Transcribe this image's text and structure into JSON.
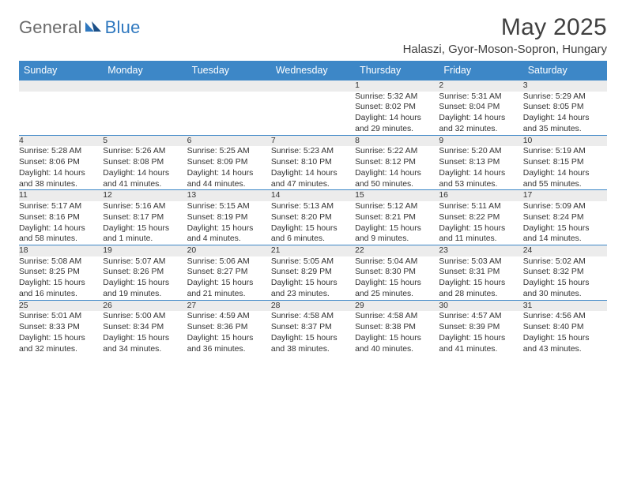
{
  "logo": {
    "general": "General",
    "blue": "Blue"
  },
  "title": "May 2025",
  "subtitle": "Halaszi, Gyor-Moson-Sopron, Hungary",
  "colors": {
    "header_bg": "#3d87c7",
    "header_text": "#ffffff",
    "daynum_bg": "#ececec",
    "border": "#3d87c7",
    "text": "#333333",
    "title": "#404040",
    "logo_gray": "#6a6a6a",
    "logo_blue": "#2f78bf"
  },
  "weekdays": [
    "Sunday",
    "Monday",
    "Tuesday",
    "Wednesday",
    "Thursday",
    "Friday",
    "Saturday"
  ],
  "weeks": [
    [
      null,
      null,
      null,
      null,
      {
        "d": "1",
        "sr": "Sunrise: 5:32 AM",
        "ss": "Sunset: 8:02 PM",
        "dl1": "Daylight: 14 hours",
        "dl2": "and 29 minutes."
      },
      {
        "d": "2",
        "sr": "Sunrise: 5:31 AM",
        "ss": "Sunset: 8:04 PM",
        "dl1": "Daylight: 14 hours",
        "dl2": "and 32 minutes."
      },
      {
        "d": "3",
        "sr": "Sunrise: 5:29 AM",
        "ss": "Sunset: 8:05 PM",
        "dl1": "Daylight: 14 hours",
        "dl2": "and 35 minutes."
      }
    ],
    [
      {
        "d": "4",
        "sr": "Sunrise: 5:28 AM",
        "ss": "Sunset: 8:06 PM",
        "dl1": "Daylight: 14 hours",
        "dl2": "and 38 minutes."
      },
      {
        "d": "5",
        "sr": "Sunrise: 5:26 AM",
        "ss": "Sunset: 8:08 PM",
        "dl1": "Daylight: 14 hours",
        "dl2": "and 41 minutes."
      },
      {
        "d": "6",
        "sr": "Sunrise: 5:25 AM",
        "ss": "Sunset: 8:09 PM",
        "dl1": "Daylight: 14 hours",
        "dl2": "and 44 minutes."
      },
      {
        "d": "7",
        "sr": "Sunrise: 5:23 AM",
        "ss": "Sunset: 8:10 PM",
        "dl1": "Daylight: 14 hours",
        "dl2": "and 47 minutes."
      },
      {
        "d": "8",
        "sr": "Sunrise: 5:22 AM",
        "ss": "Sunset: 8:12 PM",
        "dl1": "Daylight: 14 hours",
        "dl2": "and 50 minutes."
      },
      {
        "d": "9",
        "sr": "Sunrise: 5:20 AM",
        "ss": "Sunset: 8:13 PM",
        "dl1": "Daylight: 14 hours",
        "dl2": "and 53 minutes."
      },
      {
        "d": "10",
        "sr": "Sunrise: 5:19 AM",
        "ss": "Sunset: 8:15 PM",
        "dl1": "Daylight: 14 hours",
        "dl2": "and 55 minutes."
      }
    ],
    [
      {
        "d": "11",
        "sr": "Sunrise: 5:17 AM",
        "ss": "Sunset: 8:16 PM",
        "dl1": "Daylight: 14 hours",
        "dl2": "and 58 minutes."
      },
      {
        "d": "12",
        "sr": "Sunrise: 5:16 AM",
        "ss": "Sunset: 8:17 PM",
        "dl1": "Daylight: 15 hours",
        "dl2": "and 1 minute."
      },
      {
        "d": "13",
        "sr": "Sunrise: 5:15 AM",
        "ss": "Sunset: 8:19 PM",
        "dl1": "Daylight: 15 hours",
        "dl2": "and 4 minutes."
      },
      {
        "d": "14",
        "sr": "Sunrise: 5:13 AM",
        "ss": "Sunset: 8:20 PM",
        "dl1": "Daylight: 15 hours",
        "dl2": "and 6 minutes."
      },
      {
        "d": "15",
        "sr": "Sunrise: 5:12 AM",
        "ss": "Sunset: 8:21 PM",
        "dl1": "Daylight: 15 hours",
        "dl2": "and 9 minutes."
      },
      {
        "d": "16",
        "sr": "Sunrise: 5:11 AM",
        "ss": "Sunset: 8:22 PM",
        "dl1": "Daylight: 15 hours",
        "dl2": "and 11 minutes."
      },
      {
        "d": "17",
        "sr": "Sunrise: 5:09 AM",
        "ss": "Sunset: 8:24 PM",
        "dl1": "Daylight: 15 hours",
        "dl2": "and 14 minutes."
      }
    ],
    [
      {
        "d": "18",
        "sr": "Sunrise: 5:08 AM",
        "ss": "Sunset: 8:25 PM",
        "dl1": "Daylight: 15 hours",
        "dl2": "and 16 minutes."
      },
      {
        "d": "19",
        "sr": "Sunrise: 5:07 AM",
        "ss": "Sunset: 8:26 PM",
        "dl1": "Daylight: 15 hours",
        "dl2": "and 19 minutes."
      },
      {
        "d": "20",
        "sr": "Sunrise: 5:06 AM",
        "ss": "Sunset: 8:27 PM",
        "dl1": "Daylight: 15 hours",
        "dl2": "and 21 minutes."
      },
      {
        "d": "21",
        "sr": "Sunrise: 5:05 AM",
        "ss": "Sunset: 8:29 PM",
        "dl1": "Daylight: 15 hours",
        "dl2": "and 23 minutes."
      },
      {
        "d": "22",
        "sr": "Sunrise: 5:04 AM",
        "ss": "Sunset: 8:30 PM",
        "dl1": "Daylight: 15 hours",
        "dl2": "and 25 minutes."
      },
      {
        "d": "23",
        "sr": "Sunrise: 5:03 AM",
        "ss": "Sunset: 8:31 PM",
        "dl1": "Daylight: 15 hours",
        "dl2": "and 28 minutes."
      },
      {
        "d": "24",
        "sr": "Sunrise: 5:02 AM",
        "ss": "Sunset: 8:32 PM",
        "dl1": "Daylight: 15 hours",
        "dl2": "and 30 minutes."
      }
    ],
    [
      {
        "d": "25",
        "sr": "Sunrise: 5:01 AM",
        "ss": "Sunset: 8:33 PM",
        "dl1": "Daylight: 15 hours",
        "dl2": "and 32 minutes."
      },
      {
        "d": "26",
        "sr": "Sunrise: 5:00 AM",
        "ss": "Sunset: 8:34 PM",
        "dl1": "Daylight: 15 hours",
        "dl2": "and 34 minutes."
      },
      {
        "d": "27",
        "sr": "Sunrise: 4:59 AM",
        "ss": "Sunset: 8:36 PM",
        "dl1": "Daylight: 15 hours",
        "dl2": "and 36 minutes."
      },
      {
        "d": "28",
        "sr": "Sunrise: 4:58 AM",
        "ss": "Sunset: 8:37 PM",
        "dl1": "Daylight: 15 hours",
        "dl2": "and 38 minutes."
      },
      {
        "d": "29",
        "sr": "Sunrise: 4:58 AM",
        "ss": "Sunset: 8:38 PM",
        "dl1": "Daylight: 15 hours",
        "dl2": "and 40 minutes."
      },
      {
        "d": "30",
        "sr": "Sunrise: 4:57 AM",
        "ss": "Sunset: 8:39 PM",
        "dl1": "Daylight: 15 hours",
        "dl2": "and 41 minutes."
      },
      {
        "d": "31",
        "sr": "Sunrise: 4:56 AM",
        "ss": "Sunset: 8:40 PM",
        "dl1": "Daylight: 15 hours",
        "dl2": "and 43 minutes."
      }
    ]
  ]
}
